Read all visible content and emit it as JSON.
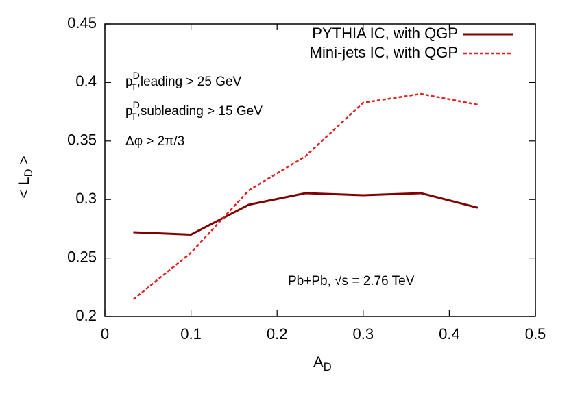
{
  "chart_data": {
    "type": "line",
    "x_label": {
      "base": "A",
      "sub": "D"
    },
    "y_label": {
      "base": "< L",
      "sub": "D",
      "end": " >"
    },
    "xlim": [
      0,
      0.5
    ],
    "xticks": [
      0,
      0.1,
      0.2,
      0.3,
      0.4,
      0.5
    ],
    "ylim": [
      0.2,
      0.45
    ],
    "yticks": [
      0.2,
      0.25,
      0.3,
      0.35,
      0.4,
      0.45
    ],
    "x": [
      0.033,
      0.1,
      0.167,
      0.233,
      0.3,
      0.367,
      0.433
    ],
    "legend": "top-right",
    "series": [
      {
        "name": "PYTHIA IC, with QGP",
        "color": "#7f0000",
        "dash": false,
        "values": [
          0.272,
          0.27,
          0.2955,
          0.3054,
          0.3036,
          0.3054,
          0.293
        ]
      },
      {
        "name": "Mini-jets IC, with QGP",
        "color": "#dd2222",
        "dash": true,
        "values": [
          0.2146,
          0.2545,
          0.3077,
          0.337,
          0.3827,
          0.3903,
          0.381
        ]
      }
    ],
    "annotations": [
      {
        "base": "p",
        "sup": "D",
        "sub": "T",
        "text": ",leading > 25 GeV"
      },
      {
        "base": "p",
        "sup": "D",
        "sub": "T",
        "text": ",subleading > 15 GeV"
      },
      {
        "text": "Δφ > 2π/3"
      },
      {
        "text": "Pb+Pb, √s = 2.76 TeV"
      }
    ]
  }
}
